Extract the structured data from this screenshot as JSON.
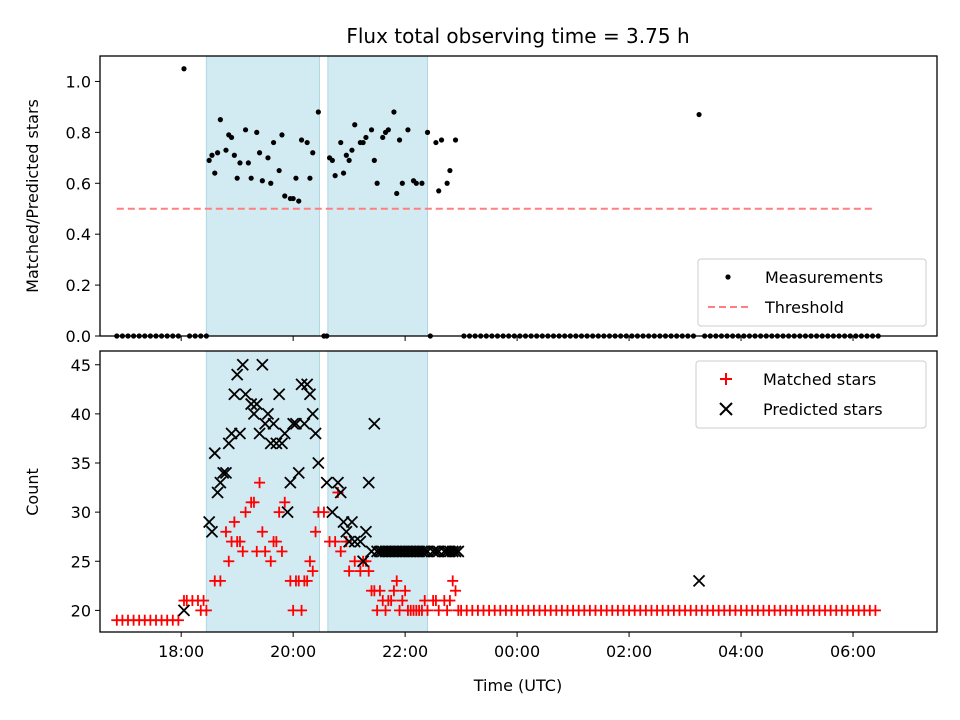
{
  "chart_data": [
    {
      "type": "scatter",
      "title": "Flux total observing time = 3.75 h",
      "xlabel": "",
      "ylabel": "Matched/Predicted stars",
      "ylim": [
        0,
        1.1
      ],
      "yticks": [
        "0.0",
        "0.2",
        "0.4",
        "0.6",
        "0.8",
        "1.0"
      ],
      "xlim_hours": [
        16.55,
        31.5
      ],
      "xticks": [
        "18:00",
        "20:00",
        "22:00",
        "00:00",
        "02:00",
        "04:00",
        "06:00"
      ],
      "xtick_labels_visible": false,
      "shaded_intervals_hours": [
        [
          18.45,
          20.47
        ],
        [
          20.62,
          22.4
        ]
      ],
      "shade_color": "#add8e6",
      "threshold": {
        "name": "Threshold",
        "value": 0.5,
        "x_from_hours": 16.85,
        "x_to_hours": 30.35,
        "color": "#ff7f7f"
      },
      "legend": {
        "placement": "lower right",
        "entries": [
          "Measurements",
          "Threshold"
        ]
      },
      "series": [
        {
          "name": "Measurements",
          "color": "#000000",
          "x_hours": [
            18.05,
            18.5,
            18.55,
            18.6,
            18.65,
            18.7,
            18.8,
            18.85,
            18.9,
            18.95,
            19.0,
            19.05,
            19.15,
            19.2,
            19.25,
            19.35,
            19.4,
            19.45,
            19.55,
            19.6,
            19.65,
            19.75,
            19.8,
            19.85,
            19.95,
            20.0,
            20.05,
            20.1,
            20.15,
            20.25,
            20.3,
            20.35,
            20.45,
            20.65,
            20.7,
            20.75,
            20.85,
            20.9,
            20.95,
            21.0,
            21.05,
            21.1,
            21.2,
            21.25,
            21.3,
            21.4,
            21.45,
            21.5,
            21.6,
            21.65,
            21.7,
            21.8,
            21.85,
            21.9,
            21.95,
            22.05,
            22.15,
            22.2,
            22.3,
            22.4,
            22.55,
            22.6,
            22.65,
            22.75,
            22.8,
            22.9,
            27.25
          ],
          "y": [
            1.05,
            0.69,
            0.71,
            0.64,
            0.72,
            0.85,
            0.73,
            0.79,
            0.78,
            0.71,
            0.62,
            0.68,
            0.81,
            0.68,
            0.62,
            0.8,
            0.72,
            0.61,
            0.7,
            0.6,
            0.76,
            0.65,
            0.79,
            0.55,
            0.54,
            0.54,
            0.62,
            0.53,
            0.77,
            0.76,
            0.62,
            0.72,
            0.88,
            0.7,
            0.69,
            0.63,
            0.76,
            0.64,
            0.71,
            0.69,
            0.73,
            0.83,
            0.76,
            0.76,
            0.78,
            0.81,
            0.69,
            0.6,
            0.78,
            0.8,
            0.81,
            0.88,
            0.56,
            0.77,
            0.6,
            0.81,
            0.61,
            0.6,
            0.6,
            0.8,
            0.76,
            0.57,
            0.77,
            0.6,
            0.65,
            0.77,
            0.87
          ],
          "zero_level_hours": {
            "from": 16.85,
            "to": 30.45,
            "step": 0.1,
            "except": [
              18.05,
              18.45,
              18.5,
              18.55,
              18.6,
              18.65,
              18.7,
              18.75,
              18.8,
              18.85,
              18.9,
              18.95,
              19.0,
              19.05,
              19.1,
              19.15,
              19.2,
              19.25,
              19.3,
              19.35,
              19.4,
              19.45,
              19.5,
              19.55,
              19.6,
              19.65,
              19.7,
              19.75,
              19.8,
              19.85,
              19.9,
              19.95,
              20.0,
              20.05,
              20.1,
              20.15,
              20.2,
              20.25,
              20.3,
              20.35,
              20.4,
              20.45,
              20.65,
              20.7,
              20.75,
              20.8,
              20.85,
              20.9,
              20.95,
              21.0,
              21.05,
              21.1,
              21.15,
              21.2,
              21.25,
              21.3,
              21.35,
              21.4,
              21.45,
              21.5,
              21.55,
              21.6,
              21.65,
              21.7,
              21.75,
              21.8,
              21.85,
              21.9,
              21.95,
              22.0,
              22.05,
              22.1,
              22.15,
              22.2,
              22.25,
              22.3,
              22.35,
              22.45,
              22.5,
              22.55,
              22.6,
              22.65,
              22.7,
              22.75,
              22.8,
              22.85,
              22.9,
              22.95,
              27.25
            ]
          }
        }
      ]
    },
    {
      "type": "scatter",
      "title": "",
      "xlabel": "Time (UTC)",
      "ylabel": "Count",
      "ylim": [
        17.8,
        46.4
      ],
      "yticks": [
        "20",
        "25",
        "30",
        "35",
        "40",
        "45"
      ],
      "xlim_hours": [
        16.55,
        31.5
      ],
      "xticks": [
        "18:00",
        "20:00",
        "22:00",
        "00:00",
        "02:00",
        "04:00",
        "06:00"
      ],
      "shaded_intervals_hours": [
        [
          18.45,
          20.47
        ],
        [
          20.62,
          22.4
        ]
      ],
      "shade_color": "#add8e6",
      "legend": {
        "placement": "upper right",
        "entries": [
          "Matched stars",
          "Predicted stars"
        ]
      },
      "series": [
        {
          "name": "Matched stars",
          "marker": "plus",
          "color": "#ff0000",
          "x_hours": [
            18.05,
            18.1,
            18.2,
            18.3,
            18.35,
            18.4,
            18.45,
            18.6,
            18.7,
            18.8,
            18.85,
            18.9,
            18.95,
            19.0,
            19.05,
            19.1,
            19.15,
            19.25,
            19.3,
            19.35,
            19.4,
            19.45,
            19.5,
            19.6,
            19.65,
            19.7,
            19.75,
            19.8,
            19.85,
            19.95,
            20.0,
            20.05,
            20.1,
            20.15,
            20.2,
            20.25,
            20.3,
            20.35,
            20.4,
            20.45,
            20.55,
            20.65,
            20.75,
            20.8,
            20.85,
            20.95,
            21.0,
            21.1,
            21.2,
            21.25,
            21.3,
            21.35,
            21.4,
            21.45,
            21.5,
            21.55,
            21.6,
            21.65,
            21.7,
            21.75,
            21.8,
            21.85,
            21.9,
            21.95,
            22.0,
            22.05,
            22.1,
            22.15,
            22.2,
            22.25,
            22.3,
            22.35,
            22.4,
            22.5,
            22.55,
            22.6,
            22.7,
            22.75,
            22.8,
            22.85,
            22.9,
            22.95
          ],
          "y": [
            21,
            21,
            21,
            21,
            20,
            21,
            20,
            23,
            23,
            28,
            25,
            27,
            29,
            27,
            27,
            26,
            30,
            31,
            31,
            26,
            33,
            28,
            26,
            25,
            27,
            27,
            30,
            26,
            31,
            23,
            20,
            23,
            23,
            20,
            23,
            23,
            25,
            24,
            28,
            30,
            30,
            27,
            27,
            32,
            26,
            27,
            24,
            25,
            24,
            25,
            25,
            24,
            22,
            22,
            20,
            22,
            21,
            20,
            21,
            21,
            22,
            23,
            20,
            21,
            22,
            20,
            20,
            20,
            20,
            20,
            20,
            21,
            20,
            21,
            21,
            20,
            21,
            20,
            21,
            23,
            22,
            20
          ],
          "baseline": {
            "from_hours": 16.85,
            "to_hours": 17.95,
            "value": 19,
            "step": 0.1
          },
          "tail": {
            "from_hours": 23.0,
            "to_hours": 30.45,
            "value": 20,
            "step": 0.1
          }
        },
        {
          "name": "Predicted stars",
          "marker": "x",
          "color": "#000000",
          "x_hours": [
            18.05,
            18.5,
            18.55,
            18.6,
            18.65,
            18.7,
            18.75,
            18.8,
            18.85,
            18.9,
            18.95,
            19.0,
            19.05,
            19.1,
            19.15,
            19.25,
            19.3,
            19.35,
            19.4,
            19.45,
            19.5,
            19.55,
            19.6,
            19.65,
            19.7,
            19.75,
            19.8,
            19.85,
            19.9,
            19.95,
            20.0,
            20.05,
            20.1,
            20.15,
            20.2,
            20.25,
            20.3,
            20.35,
            20.4,
            20.45,
            20.6,
            20.7,
            20.8,
            20.85,
            20.9,
            20.95,
            21.0,
            21.05,
            21.1,
            21.2,
            21.25,
            21.3,
            21.35,
            21.4,
            21.45,
            21.5,
            21.55,
            21.6,
            21.65,
            21.7,
            21.75,
            21.8,
            21.85,
            21.9,
            21.95,
            22.0,
            22.05,
            22.1,
            22.15,
            22.2,
            22.25,
            22.3,
            22.35,
            22.4,
            22.5,
            22.55,
            22.6,
            22.7,
            22.75,
            22.8,
            22.85,
            22.9,
            22.95,
            27.25
          ],
          "y": [
            20,
            29,
            28,
            36,
            32,
            33,
            34,
            34,
            37,
            38,
            42,
            44,
            38,
            45,
            42,
            41,
            40,
            41,
            38,
            45,
            39,
            40,
            37,
            39,
            37,
            42,
            37,
            38,
            30,
            33,
            39,
            39,
            34,
            43,
            39,
            43,
            42,
            40,
            38,
            35,
            33,
            30,
            33,
            32,
            29,
            28,
            27,
            29,
            27,
            27,
            25,
            28,
            33,
            26,
            39,
            26,
            26,
            26,
            26,
            26,
            26,
            26,
            26,
            26,
            26,
            26,
            26,
            26,
            26,
            26,
            26,
            26,
            26,
            26,
            26,
            26,
            26,
            26,
            26,
            26,
            26,
            26,
            26,
            23
          ]
        }
      ]
    }
  ]
}
